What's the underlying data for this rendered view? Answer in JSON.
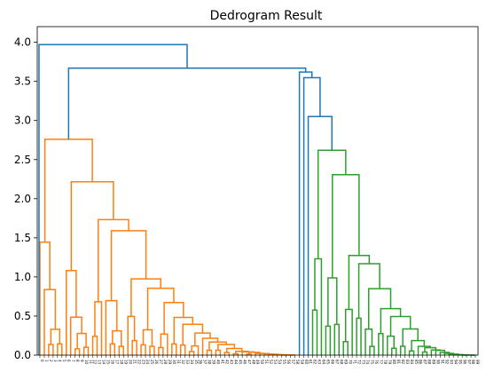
{
  "chart_data": {
    "type": "dendrogram",
    "title": "Dedrogram Result",
    "xlabel": "",
    "ylabel": "",
    "ylim": [
      0,
      4.2
    ],
    "yticks": [
      0.0,
      0.5,
      1.0,
      1.5,
      2.0,
      2.5,
      3.0,
      3.5,
      4.0
    ],
    "ytick_labels": [
      "0.0",
      "0.5",
      "1.0",
      "1.5",
      "2.0",
      "2.5",
      "3.0",
      "3.5",
      "4.0"
    ],
    "grid": false,
    "leaf_count": 100,
    "leaf_label_hint": "leaf indices (illegible at this resolution)",
    "colors": {
      "root": "#1f77b4",
      "cluster_1": "#ff7f0e",
      "cluster_2": "#2ca02c"
    },
    "merge_heights": {
      "root": 3.97,
      "upper_split": 3.67,
      "right_upper": 3.62,
      "right_mid": 3.05,
      "orange_top": 2.76,
      "green_top": 2.62
    },
    "clusters": [
      {
        "color_key": "cluster_1",
        "leaf_range": [
          0,
          58
        ],
        "top_height": 2.76
      },
      {
        "color_key": "cluster_2",
        "leaf_range": [
          59,
          99
        ],
        "top_height": 2.62
      }
    ]
  }
}
